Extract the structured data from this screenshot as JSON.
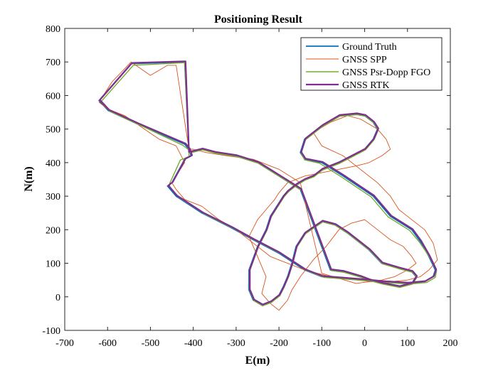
{
  "chart_data": {
    "type": "line",
    "title": "Positioning Result",
    "xlabel": "E(m)",
    "ylabel": "N(m)",
    "xlim": [
      -700,
      200
    ],
    "ylim": [
      -100,
      800
    ],
    "xticks": [
      -700,
      -600,
      -500,
      -400,
      -300,
      -200,
      -100,
      0,
      100,
      200
    ],
    "yticks": [
      -100,
      0,
      100,
      200,
      300,
      400,
      500,
      600,
      700,
      800
    ],
    "grid": false,
    "legend_position": "top-right",
    "series": [
      {
        "name": "Ground Truth",
        "color": "#0072BD",
        "x": [
          -410,
          -420,
          -545,
          -620,
          -598,
          -530,
          -420,
          -410,
          -405,
          -420,
          -450,
          -460,
          -440,
          -380,
          -310,
          -260,
          -200,
          -140,
          -100,
          -50,
          0,
          40,
          100,
          140,
          160,
          165,
          150,
          130,
          110,
          60,
          20,
          -50,
          -100,
          -140,
          -150,
          -140,
          -100,
          -60,
          -20,
          0,
          20,
          30,
          20,
          0,
          -30,
          -60,
          -80,
          -100,
          -110,
          -120,
          -140,
          -160,
          -180,
          -190,
          -200,
          -210,
          -220,
          -230,
          -250,
          -270,
          -270,
          -260,
          -240,
          -220,
          -200,
          -190,
          -180,
          -170,
          -160,
          -140,
          -100,
          -70,
          -40,
          -10,
          10,
          40,
          80,
          110,
          120,
          110,
          80,
          40,
          10,
          -10,
          -50,
          -80,
          -150,
          -200,
          -250,
          -300,
          -350,
          -380,
          -410
        ],
        "y": [
          430,
          700,
          695,
          585,
          555,
          515,
          455,
          440,
          420,
          410,
          340,
          330,
          300,
          250,
          205,
          170,
          130,
          80,
          60,
          55,
          50,
          45,
          40,
          45,
          60,
          80,
          120,
          165,
          200,
          240,
          300,
          360,
          400,
          410,
          430,
          470,
          510,
          540,
          545,
          540,
          520,
          500,
          470,
          440,
          420,
          400,
          390,
          380,
          370,
          360,
          350,
          335,
          315,
          300,
          280,
          260,
          240,
          200,
          150,
          80,
          20,
          -10,
          -25,
          -15,
          5,
          30,
          60,
          100,
          150,
          190,
          225,
          215,
          190,
          160,
          140,
          100,
          85,
          75,
          60,
          40,
          30,
          40,
          50,
          60,
          75,
          80,
          320,
          360,
          400,
          420,
          430,
          440,
          430
        ]
      },
      {
        "name": "GNSS SPP",
        "color": "#D95319",
        "x": [
          -410,
          -440,
          -460,
          -500,
          -545,
          -590,
          -620,
          -600,
          -560,
          -520,
          -480,
          -440,
          -420,
          -430,
          -450,
          -440,
          -420,
          -380,
          -340,
          -300,
          -260,
          -220,
          -180,
          -140,
          -110,
          -80,
          -60,
          -20,
          20,
          60,
          100,
          130,
          150,
          170,
          160,
          140,
          110,
          80,
          60,
          30,
          -10,
          -50,
          -100,
          -120,
          -80,
          -40,
          -10,
          30,
          50,
          60,
          40,
          10,
          -20,
          -60,
          -100,
          -140,
          -180,
          -200,
          -210,
          -230,
          -250,
          -270,
          -250,
          -230,
          -240,
          -220,
          -200,
          -180,
          -170,
          -150,
          -120,
          -90,
          -60,
          -30,
          0,
          30,
          60,
          90,
          110,
          120,
          100,
          70,
          40,
          10,
          -20,
          -60,
          -100,
          -150,
          -200,
          -260,
          -320,
          -370,
          -400,
          -410
        ],
        "y": [
          440,
          690,
          690,
          660,
          700,
          640,
          580,
          560,
          540,
          505,
          470,
          450,
          400,
          380,
          340,
          320,
          290,
          270,
          230,
          200,
          160,
          120,
          100,
          80,
          70,
          60,
          55,
          50,
          45,
          45,
          50,
          60,
          80,
          110,
          160,
          200,
          230,
          260,
          300,
          340,
          380,
          420,
          450,
          490,
          520,
          540,
          530,
          500,
          470,
          440,
          420,
          400,
          390,
          380,
          370,
          360,
          340,
          310,
          290,
          260,
          230,
          180,
          120,
          60,
          10,
          -20,
          -40,
          -10,
          20,
          60,
          110,
          150,
          200,
          220,
          230,
          200,
          170,
          150,
          120,
          100,
          80,
          60,
          50,
          45,
          40,
          55,
          70,
          340,
          380,
          410,
          420,
          430,
          440,
          440
        ]
      },
      {
        "name": "GNSS Psr-Dopp FGO",
        "color": "#77AC30",
        "x": [
          -410,
          -420,
          -540,
          -615,
          -595,
          -525,
          -425,
          -410,
          -410,
          -430,
          -455,
          -455,
          -435,
          -375,
          -305,
          -255,
          -195,
          -135,
          -95,
          -45,
          5,
          45,
          105,
          145,
          165,
          168,
          152,
          128,
          105,
          55,
          15,
          -55,
          -105,
          -140,
          -148,
          -138,
          -98,
          -58,
          -18,
          2,
          22,
          32,
          22,
          2,
          -28,
          -58,
          -78,
          -98,
          -108,
          -118,
          -138,
          -158,
          -178,
          -188,
          -198,
          -208,
          -218,
          -228,
          -248,
          -268,
          -268,
          -258,
          -238,
          -218,
          -198,
          -188,
          -178,
          -168,
          -158,
          -138,
          -98,
          -68,
          -38,
          -8,
          12,
          42,
          82,
          112,
          122,
          112,
          82,
          42,
          12,
          -8,
          -48,
          -78,
          -148,
          -198,
          -248,
          -298,
          -348,
          -378,
          -410
        ],
        "y": [
          428,
          698,
          690,
          582,
          553,
          512,
          452,
          438,
          418,
          408,
          338,
          328,
          298,
          248,
          203,
          168,
          128,
          78,
          58,
          53,
          48,
          43,
          38,
          43,
          58,
          78,
          118,
          163,
          198,
          238,
          298,
          358,
          398,
          408,
          428,
          468,
          508,
          538,
          543,
          538,
          518,
          498,
          468,
          438,
          418,
          398,
          388,
          378,
          368,
          358,
          348,
          333,
          313,
          298,
          278,
          258,
          238,
          198,
          148,
          78,
          18,
          -12,
          -27,
          -17,
          3,
          28,
          58,
          98,
          148,
          188,
          223,
          213,
          188,
          158,
          138,
          98,
          83,
          73,
          58,
          38,
          28,
          38,
          48,
          58,
          73,
          78,
          318,
          358,
          398,
          418,
          428,
          438,
          428
        ]
      },
      {
        "name": "GNSS RTK",
        "color": "#7E2F8E",
        "x": [
          -410,
          -418,
          -543,
          -618,
          -596,
          -528,
          -418,
          -408,
          -403,
          -418,
          -448,
          -458,
          -438,
          -378,
          -308,
          -258,
          -198,
          -138,
          -98,
          -48,
          2,
          42,
          102,
          142,
          162,
          167,
          152,
          132,
          112,
          62,
          22,
          -48,
          -98,
          -138,
          -148,
          -138,
          -98,
          -58,
          -18,
          2,
          22,
          32,
          22,
          2,
          -28,
          -58,
          -78,
          -98,
          -108,
          -118,
          -138,
          -158,
          -178,
          -188,
          -198,
          -208,
          -218,
          -228,
          -248,
          -268,
          -268,
          -258,
          -238,
          -218,
          -198,
          -188,
          -178,
          -168,
          -158,
          -138,
          -98,
          -68,
          -38,
          -8,
          12,
          42,
          82,
          112,
          122,
          112,
          82,
          42,
          12,
          -8,
          -48,
          -78,
          -148,
          -198,
          -248,
          -298,
          -348,
          -378,
          -410
        ],
        "y": [
          432,
          702,
          697,
          587,
          557,
          517,
          457,
          442,
          422,
          412,
          342,
          332,
          302,
          252,
          207,
          172,
          132,
          82,
          62,
          57,
          52,
          47,
          42,
          47,
          62,
          82,
          122,
          167,
          202,
          242,
          302,
          362,
          402,
          412,
          432,
          472,
          512,
          542,
          547,
          542,
          522,
          502,
          472,
          442,
          422,
          402,
          392,
          382,
          372,
          362,
          352,
          337,
          317,
          302,
          282,
          262,
          242,
          202,
          152,
          82,
          22,
          -8,
          -23,
          -13,
          7,
          32,
          62,
          102,
          152,
          192,
          227,
          217,
          192,
          162,
          142,
          102,
          87,
          77,
          62,
          42,
          32,
          42,
          52,
          62,
          77,
          82,
          322,
          362,
          402,
          422,
          432,
          442,
          432
        ]
      }
    ]
  }
}
